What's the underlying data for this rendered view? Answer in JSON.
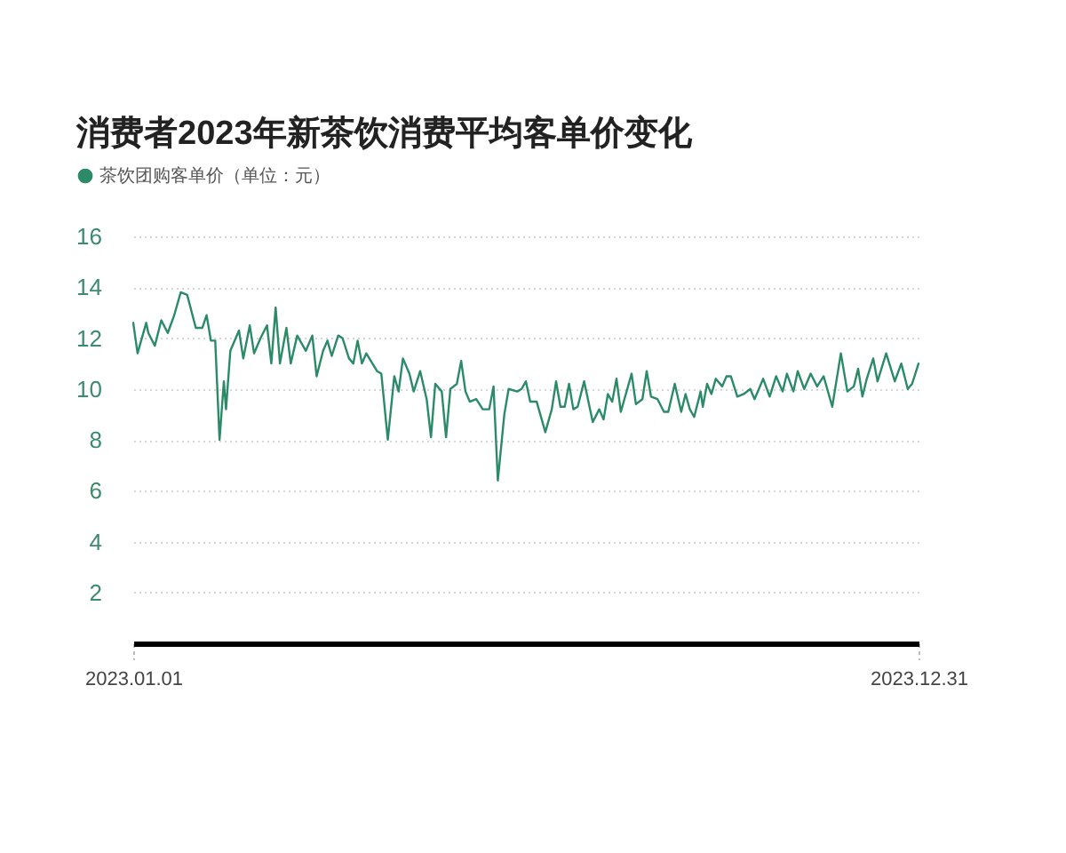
{
  "chart_data": {
    "type": "line",
    "title": "消费者2023年新茶饮消费平均客单价变化",
    "x": [
      "2023-01-01",
      "2023-01-03",
      "2023-01-07",
      "2023-01-08",
      "2023-01-11",
      "2023-01-14",
      "2023-01-17",
      "2023-01-20",
      "2023-01-23",
      "2023-01-26",
      "2023-01-30",
      "2023-02-02",
      "2023-02-04",
      "2023-02-06",
      "2023-02-08",
      "2023-02-10",
      "2023-02-12",
      "2023-02-13",
      "2023-02-15",
      "2023-02-19",
      "2023-02-21",
      "2023-02-24",
      "2023-02-26",
      "2023-03-01",
      "2023-03-04",
      "2023-03-06",
      "2023-03-08",
      "2023-03-10",
      "2023-03-13",
      "2023-03-15",
      "2023-03-18",
      "2023-03-22",
      "2023-03-25",
      "2023-03-27",
      "2023-03-30",
      "2023-04-01",
      "2023-04-03",
      "2023-04-06",
      "2023-04-08",
      "2023-04-11",
      "2023-04-13",
      "2023-04-15",
      "2023-04-17",
      "2023-04-19",
      "2023-04-24",
      "2023-04-26",
      "2023-04-29",
      "2023-05-02",
      "2023-05-04",
      "2023-05-06",
      "2023-05-09",
      "2023-05-11",
      "2023-05-14",
      "2023-05-17",
      "2023-05-19",
      "2023-05-21",
      "2023-05-24",
      "2023-05-26",
      "2023-05-28",
      "2023-05-31",
      "2023-06-02",
      "2023-06-04",
      "2023-06-06",
      "2023-06-09",
      "2023-06-12",
      "2023-06-15",
      "2023-06-17",
      "2023-06-19",
      "2023-06-22",
      "2023-06-24",
      "2023-06-28",
      "2023-06-30",
      "2023-07-02",
      "2023-07-04",
      "2023-07-07",
      "2023-07-11",
      "2023-07-14",
      "2023-07-16",
      "2023-07-18",
      "2023-07-20",
      "2023-07-22",
      "2023-07-24",
      "2023-07-26",
      "2023-07-29",
      "2023-08-02",
      "2023-08-05",
      "2023-08-07",
      "2023-08-09",
      "2023-08-11",
      "2023-08-13",
      "2023-08-15",
      "2023-08-20",
      "2023-08-22",
      "2023-08-25",
      "2023-08-27",
      "2023-08-29",
      "2023-09-01",
      "2023-09-04",
      "2023-09-06",
      "2023-09-09",
      "2023-09-12",
      "2023-09-14",
      "2023-09-16",
      "2023-09-18",
      "2023-09-21",
      "2023-09-22",
      "2023-09-24",
      "2023-09-26",
      "2023-09-28",
      "2023-10-01",
      "2023-10-03",
      "2023-10-05",
      "2023-10-08",
      "2023-10-11",
      "2023-10-14",
      "2023-10-16",
      "2023-10-20",
      "2023-10-23",
      "2023-10-26",
      "2023-10-29",
      "2023-10-31",
      "2023-11-03",
      "2023-11-05",
      "2023-11-08",
      "2023-11-11",
      "2023-11-14",
      "2023-11-17",
      "2023-11-21",
      "2023-11-25",
      "2023-11-28",
      "2023-12-01",
      "2023-12-03",
      "2023-12-05",
      "2023-12-07",
      "2023-12-10",
      "2023-12-12",
      "2023-12-16",
      "2023-12-20",
      "2023-12-23",
      "2023-12-26",
      "2023-12-28",
      "2023-12-31"
    ],
    "series": [
      {
        "name": "茶饮团购客单价（单位：元）",
        "color": "#2b8a68",
        "values": [
          12.6,
          11.4,
          12.6,
          12.2,
          11.7,
          12.7,
          12.2,
          12.9,
          13.8,
          13.7,
          12.4,
          12.4,
          12.9,
          11.9,
          11.9,
          8.0,
          10.3,
          9.2,
          11.5,
          12.3,
          11.2,
          12.5,
          11.4,
          12.0,
          12.5,
          11.0,
          13.2,
          11.0,
          12.4,
          11.0,
          12.1,
          11.5,
          12.1,
          10.5,
          11.5,
          11.9,
          11.3,
          12.1,
          12.0,
          11.2,
          11.0,
          11.9,
          11.0,
          11.4,
          10.7,
          10.6,
          8.0,
          10.5,
          9.9,
          11.2,
          10.6,
          9.9,
          10.7,
          9.6,
          8.1,
          10.2,
          9.9,
          8.1,
          10.0,
          10.2,
          11.1,
          9.9,
          9.5,
          9.6,
          9.2,
          9.2,
          10.1,
          6.4,
          9.0,
          10.0,
          9.9,
          10.0,
          10.3,
          9.5,
          9.5,
          8.3,
          9.2,
          10.3,
          9.3,
          9.3,
          10.2,
          9.2,
          9.3,
          10.3,
          8.7,
          9.2,
          8.8,
          9.8,
          9.5,
          10.4,
          9.1,
          10.6,
          9.4,
          9.6,
          10.7,
          9.7,
          9.6,
          9.1,
          9.1,
          10.2,
          9.1,
          9.8,
          9.2,
          8.9,
          9.9,
          9.3,
          10.2,
          9.8,
          10.4,
          10.1,
          10.5,
          10.5,
          9.7,
          9.8,
          10.0,
          9.6,
          10.4,
          9.7,
          10.5,
          9.9,
          10.6,
          9.9,
          10.7,
          10.0,
          10.6,
          10.1,
          10.5,
          9.3,
          11.4,
          9.9,
          10.1,
          10.8,
          9.7,
          10.4,
          11.2,
          10.3,
          11.4,
          10.3,
          11.0,
          10.0,
          10.2,
          11.0
        ]
      }
    ],
    "xlim": [
      "2023-01-01",
      "2023-12-31"
    ],
    "xticks": [
      {
        "value": "2023-01-01",
        "label": "2023.01.01"
      },
      {
        "value": "2023-12-31",
        "label": "2023.12.31"
      }
    ],
    "ylim": [
      0,
      16
    ],
    "yticks": [
      2,
      4,
      6,
      8,
      10,
      12,
      14,
      16
    ],
    "grid": "y",
    "legend": "top left",
    "marker": "none",
    "line_style": "solid"
  }
}
